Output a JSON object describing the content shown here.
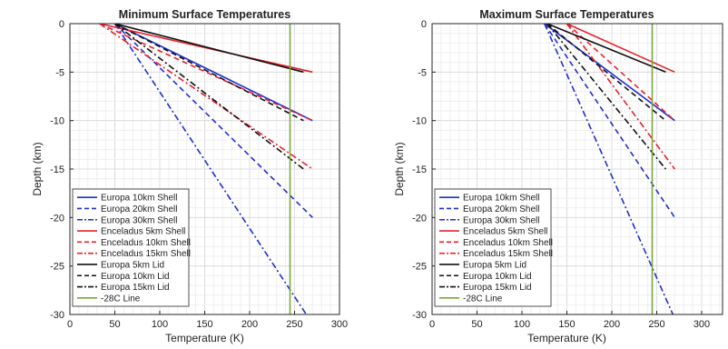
{
  "chart_data": [
    {
      "type": "line",
      "title": "Minimum Surface Temperatures",
      "xlabel": "Temperature (K)",
      "ylabel": "Depth (km)",
      "xlim": [
        0,
        300
      ],
      "ylim": [
        -30,
        0
      ],
      "xticks": [
        "0",
        "50",
        "100",
        "150",
        "200",
        "250",
        "300"
      ],
      "yticks": [
        "0",
        "-5",
        "-10",
        "-15",
        "-20",
        "-25",
        "-30"
      ],
      "grid": true,
      "legend_position": "bottom-left",
      "series": [
        {
          "name": "Europa 10km Shell",
          "color": "#1f2fd0",
          "dash": "solid",
          "x": [
            50,
            270
          ],
          "y": [
            0,
            -10
          ]
        },
        {
          "name": "Europa 20km Shell",
          "color": "#1f2fd0",
          "dash": "dashed",
          "x": [
            50,
            270
          ],
          "y": [
            0,
            -20
          ]
        },
        {
          "name": "Europa 30km Shell",
          "color": "#1f2fd0",
          "dash": "dashdot",
          "x": [
            50,
            263
          ],
          "y": [
            0,
            -30
          ]
        },
        {
          "name": "Enceladus 5km Shell",
          "color": "#e8202a",
          "dash": "solid",
          "x": [
            33,
            270
          ],
          "y": [
            0,
            -5
          ]
        },
        {
          "name": "Enceladus 10km Shell",
          "color": "#e8202a",
          "dash": "dashed",
          "x": [
            33,
            270
          ],
          "y": [
            0,
            -10
          ]
        },
        {
          "name": "Enceladus 15km Shell",
          "color": "#e8202a",
          "dash": "dashdot",
          "x": [
            33,
            270
          ],
          "y": [
            0,
            -15
          ]
        },
        {
          "name": "Europa 5km Lid",
          "color": "#111111",
          "dash": "solid",
          "x": [
            50,
            260
          ],
          "y": [
            0,
            -5
          ]
        },
        {
          "name": "Europa 10km Lid",
          "color": "#111111",
          "dash": "dashed",
          "x": [
            50,
            260
          ],
          "y": [
            0,
            -10
          ]
        },
        {
          "name": "Europa 15km Lid",
          "color": "#111111",
          "dash": "dashdot",
          "x": [
            50,
            260
          ],
          "y": [
            0,
            -15
          ]
        },
        {
          "name": "-28C Line",
          "color": "#7aa63c",
          "dash": "solid",
          "x": [
            245,
            245
          ],
          "y": [
            0,
            -30
          ]
        }
      ]
    },
    {
      "type": "line",
      "title": "Maximum Surface Temperatures",
      "xlabel": "Temperature (K)",
      "ylabel": "Depth (km)",
      "xlim": [
        0,
        300
      ],
      "ylim": [
        -30,
        0
      ],
      "xticks": [
        "0",
        "50",
        "100",
        "150",
        "200",
        "250",
        "300"
      ],
      "yticks": [
        "0",
        "-5",
        "-10",
        "-15",
        "-20",
        "-25",
        "-30"
      ],
      "grid": true,
      "legend_position": "bottom-left",
      "series": [
        {
          "name": "Europa 10km Shell",
          "color": "#1f2fd0",
          "dash": "solid",
          "x": [
            125,
            270
          ],
          "y": [
            0,
            -10
          ]
        },
        {
          "name": "Europa 20km Shell",
          "color": "#1f2fd0",
          "dash": "dashed",
          "x": [
            125,
            270
          ],
          "y": [
            0,
            -20
          ]
        },
        {
          "name": "Europa 30km Shell",
          "color": "#1f2fd0",
          "dash": "dashdot",
          "x": [
            125,
            268
          ],
          "y": [
            0,
            -30
          ]
        },
        {
          "name": "Enceladus 5km Shell",
          "color": "#e8202a",
          "dash": "solid",
          "x": [
            150,
            270
          ],
          "y": [
            0,
            -5
          ]
        },
        {
          "name": "Enceladus 10km Shell",
          "color": "#e8202a",
          "dash": "dashed",
          "x": [
            150,
            270
          ],
          "y": [
            0,
            -10
          ]
        },
        {
          "name": "Enceladus 15km Shell",
          "color": "#e8202a",
          "dash": "dashdot",
          "x": [
            150,
            270
          ],
          "y": [
            0,
            -15
          ]
        },
        {
          "name": "Europa 5km Lid",
          "color": "#111111",
          "dash": "solid",
          "x": [
            128,
            260
          ],
          "y": [
            0,
            -5
          ]
        },
        {
          "name": "Europa 10km Lid",
          "color": "#111111",
          "dash": "dashed",
          "x": [
            128,
            260
          ],
          "y": [
            0,
            -10
          ]
        },
        {
          "name": "Europa 15km Lid",
          "color": "#111111",
          "dash": "dashdot",
          "x": [
            128,
            260
          ],
          "y": [
            0,
            -15
          ]
        },
        {
          "name": "-28C Line",
          "color": "#7aa63c",
          "dash": "solid",
          "x": [
            245,
            245
          ],
          "y": [
            0,
            -30
          ]
        }
      ]
    }
  ]
}
